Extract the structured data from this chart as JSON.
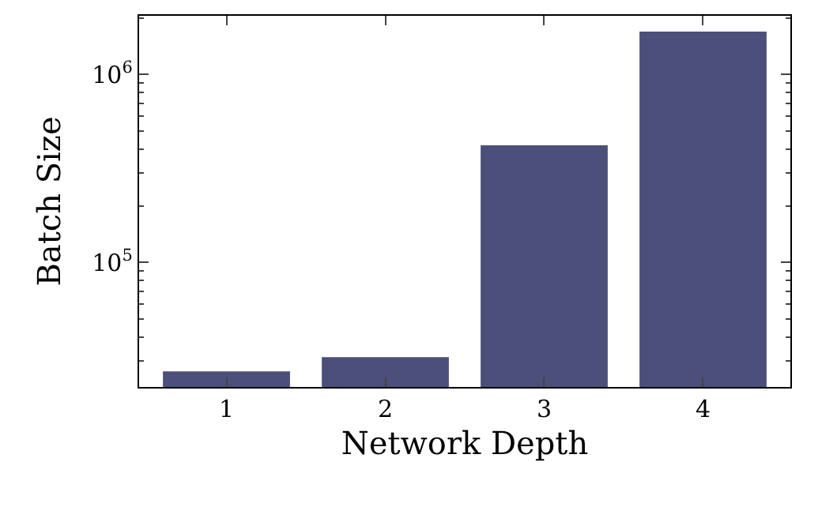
{
  "chart_data": {
    "type": "bar",
    "xlabel": "Network Depth",
    "ylabel": "Batch Size",
    "categories": [
      "1",
      "2",
      "3",
      "4"
    ],
    "values": [
      26300,
      31300,
      419000,
      1690000
    ],
    "color": "#4c4f7a",
    "log": true,
    "ylim": [
      21700,
      2050000
    ],
    "yticks": [
      {
        "value": 100000,
        "label": "10$^{5}$"
      },
      {
        "value": 1000000,
        "label": "10$^{6}$"
      }
    ],
    "grid": false
  }
}
